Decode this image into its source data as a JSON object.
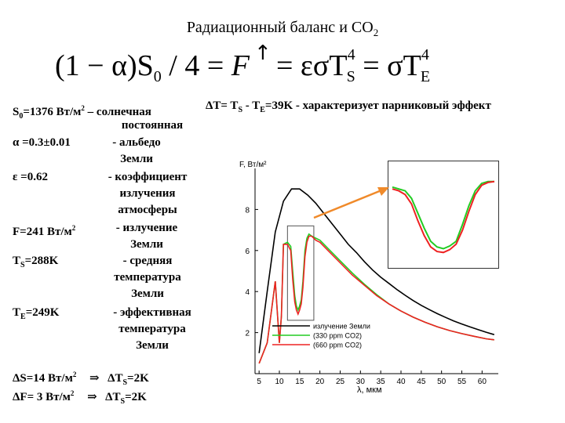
{
  "title": {
    "text": "Радиационный баланс и CO",
    "sub": "2"
  },
  "formula": {
    "lhs_open": "(1 − α)S",
    "lhs_sub": "0",
    "lhs_rest": " / 4 = ",
    "F": "F",
    "eq1": " = εσT",
    "ts_sup": "4",
    "ts_sub": "S",
    "eq2": " = σT",
    "te_sup": "4",
    "te_sub": "E",
    "arrow": "↑"
  },
  "greenhouse": {
    "prefix": "ΔT= T",
    "s": "S",
    "mid": " - T",
    "e": "E",
    "rest": "=39K - характеризует парниковый эффект"
  },
  "params": [
    {
      "sym": "S",
      "sub": "0",
      "val": "=1376 Вт/м",
      "sup": "2",
      "dash": " – солнечная",
      "desc": [
        "постоянная"
      ]
    },
    {
      "sym": "α",
      "sub": "",
      "val": " =0.3±0.01",
      "sup": "",
      "dash": "",
      "desc": [
        "- альбедо",
        "Земли"
      ]
    },
    {
      "sym": "ε",
      "sub": "",
      "val": " =0.62",
      "sup": "",
      "dash": "",
      "desc": [
        "- коэффициент",
        "излучения",
        "атмосферы"
      ]
    },
    {
      "sym": "F",
      "sub": "",
      "val": "=241 Вт/м",
      "sup": "2",
      "dash": "",
      "desc": [
        "- излучение",
        "Земли"
      ]
    },
    {
      "sym": "T",
      "sub": "S",
      "val": "=288K",
      "sup": "",
      "dash": "",
      "desc": [
        "- средняя",
        "температура",
        "Земли"
      ]
    },
    {
      "sym": "T",
      "sub": "E",
      "val": "=249K",
      "sup": "",
      "dash": "",
      "desc": [
        "- эффективная",
        "температура",
        "Земли"
      ]
    }
  ],
  "deltas": [
    {
      "lhs": "ΔS=14 Вт/м",
      "sup": "2",
      "arrow": "⇒",
      "rhs": "ΔT",
      "rhs_sub": "S",
      "rhs_val": "=2K"
    },
    {
      "lhs": "ΔF= 3 Вт/м",
      "sup": "2",
      "arrow": "⇒",
      "rhs": "ΔT",
      "rhs_sub": "S",
      "rhs_val": "=2K"
    }
  ],
  "chart_data": {
    "type": "line",
    "ylabel": "F, Вт/м²",
    "xlabel": "λ, мкм",
    "xlim": [
      4,
      64
    ],
    "ylim": [
      0,
      10
    ],
    "xticks": [
      5,
      10,
      15,
      20,
      25,
      30,
      35,
      40,
      45,
      50,
      55,
      60
    ],
    "yticks": [
      2,
      4,
      6,
      8
    ],
    "legend_position": "bottom-right",
    "series": [
      {
        "name": "излучение Земли",
        "color": "#000000",
        "x": [
          5,
          7,
          9,
          11,
          13,
          15,
          17,
          19,
          21,
          23,
          25,
          27,
          29,
          31,
          33,
          35,
          37,
          39,
          41,
          43,
          45,
          47,
          49,
          51,
          53,
          55,
          57,
          59,
          61,
          63
        ],
        "y": [
          1.0,
          4.0,
          6.9,
          8.4,
          9.0,
          9.0,
          8.7,
          8.3,
          7.8,
          7.3,
          6.8,
          6.3,
          5.9,
          5.45,
          5.05,
          4.7,
          4.4,
          4.1,
          3.82,
          3.56,
          3.33,
          3.12,
          2.92,
          2.74,
          2.57,
          2.42,
          2.28,
          2.15,
          2.02,
          1.9
        ]
      },
      {
        "name": "(330 ppm CO2)",
        "color": "#22cc22",
        "x": [
          5,
          7,
          8,
          9,
          9.5,
          10,
          10.5,
          11,
          12,
          12.8,
          13.3,
          13.8,
          14.2,
          14.6,
          15,
          15.4,
          15.8,
          16.3,
          16.8,
          17.3,
          18,
          19,
          20,
          22,
          25,
          28,
          31,
          34,
          37,
          40,
          43,
          46,
          49,
          52,
          55,
          58,
          61,
          63
        ],
        "y": [
          0.5,
          1.5,
          3,
          4.5,
          3,
          1.5,
          2.8,
          6.3,
          6.4,
          6.2,
          5,
          3.8,
          3.3,
          3.1,
          3.3,
          3.6,
          4.5,
          6.0,
          6.6,
          6.8,
          6.7,
          6.6,
          6.5,
          6.1,
          5.5,
          4.9,
          4.35,
          3.85,
          3.4,
          3.05,
          2.75,
          2.5,
          2.28,
          2.1,
          1.95,
          1.82,
          1.7,
          1.65
        ]
      },
      {
        "name": "(660 ppm CO2)",
        "color": "#ee2222",
        "x": [
          5,
          7,
          8,
          9,
          9.5,
          10,
          10.5,
          11,
          12,
          12.8,
          13.3,
          13.8,
          14.2,
          14.6,
          15,
          15.4,
          15.8,
          16.3,
          16.8,
          17.3,
          18,
          19,
          20,
          22,
          25,
          28,
          31,
          34,
          37,
          40,
          43,
          46,
          49,
          52,
          55,
          58,
          61,
          63
        ],
        "y": [
          0.5,
          1.5,
          3,
          4.5,
          3,
          1.5,
          2.8,
          6.3,
          6.3,
          6.0,
          4.6,
          3.5,
          3.1,
          2.9,
          3.1,
          3.4,
          4.2,
          5.7,
          6.4,
          6.7,
          6.7,
          6.5,
          6.4,
          6.0,
          5.4,
          4.8,
          4.3,
          3.8,
          3.4,
          3.05,
          2.75,
          2.5,
          2.28,
          2.1,
          1.95,
          1.82,
          1.7,
          1.65
        ]
      }
    ]
  },
  "inset_data": {
    "x_range": [
      12,
      18.5
    ],
    "y_range": [
      2.6,
      7.2
    ],
    "green_y": [
      6.4,
      6.3,
      6.2,
      5.8,
      5.0,
      4.2,
      3.5,
      3.2,
      3.1,
      3.25,
      3.5,
      4.4,
      5.4,
      6.2,
      6.6,
      6.7,
      6.7
    ],
    "red_y": [
      6.3,
      6.2,
      6.0,
      5.5,
      4.6,
      3.8,
      3.2,
      2.95,
      2.9,
      3.05,
      3.35,
      4.1,
      5.1,
      6.0,
      6.5,
      6.65,
      6.7
    ]
  },
  "colors": {
    "arrow": "#f08a2a",
    "box": "#666666",
    "axis": "#000000"
  }
}
